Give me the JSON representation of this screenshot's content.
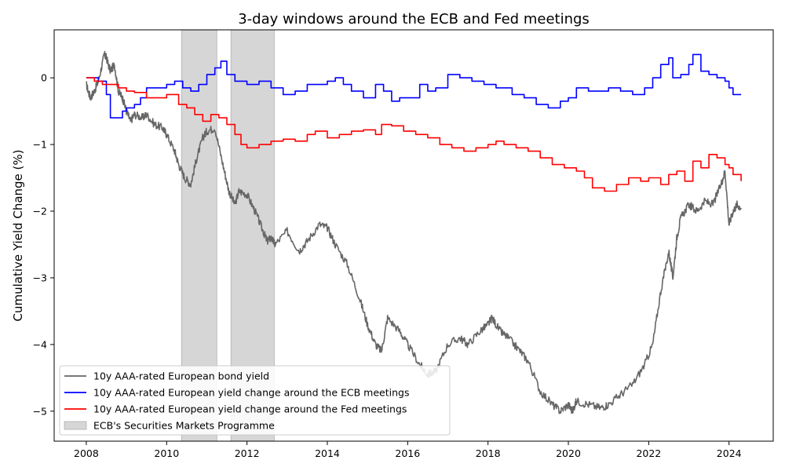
{
  "chart_data": {
    "type": "line",
    "title": "3-day windows around the ECB and Fed meetings",
    "xlabel": "",
    "ylabel": "Cumulative Yield Change (%)",
    "xlim": [
      2007.2,
      2025.1
    ],
    "ylim": [
      -5.45,
      0.72
    ],
    "xticks": [
      2008,
      2010,
      2012,
      2014,
      2016,
      2018,
      2020,
      2022,
      2024
    ],
    "yticks": [
      0,
      -1,
      -2,
      -3,
      -4,
      -5
    ],
    "ytick_labels": [
      "0",
      "−1",
      "−2",
      "−3",
      "−4",
      "−5"
    ],
    "grid": false,
    "legend_position": "lower-left",
    "shaded_regions": [
      {
        "name": "ECB's Securities Markets Programme",
        "ranges": [
          [
            2010.37,
            2011.25
          ],
          [
            2011.6,
            2012.68
          ]
        ],
        "color": "#d6d6d6"
      }
    ],
    "series": [
      {
        "name": "10y AAA-rated European bond yield",
        "color": "#666666",
        "style": "noisy",
        "x": [
          2008.0,
          2008.1,
          2008.2,
          2008.3,
          2008.45,
          2008.5,
          2008.6,
          2008.7,
          2008.8,
          2008.9,
          2009.0,
          2009.1,
          2009.2,
          2009.4,
          2009.5,
          2009.7,
          2009.9,
          2010.0,
          2010.2,
          2010.3,
          2010.45,
          2010.6,
          2010.75,
          2010.9,
          2011.0,
          2011.2,
          2011.4,
          2011.55,
          2011.7,
          2011.8,
          2012.0,
          2012.2,
          2012.4,
          2012.5,
          2012.6,
          2012.7,
          2013.0,
          2013.3,
          2013.5,
          2013.8,
          2014.0,
          2014.2,
          2014.5,
          2014.8,
          2015.0,
          2015.2,
          2015.35,
          2015.5,
          2015.8,
          2016.0,
          2016.3,
          2016.5,
          2016.7,
          2017.0,
          2017.3,
          2017.5,
          2017.8,
          2018.0,
          2018.1,
          2018.3,
          2018.5,
          2018.8,
          2019.0,
          2019.3,
          2019.6,
          2019.8,
          2020.0,
          2020.1,
          2020.2,
          2020.5,
          2020.8,
          2021.0,
          2021.3,
          2021.6,
          2021.9,
          2022.1,
          2022.3,
          2022.5,
          2022.6,
          2022.7,
          2022.8,
          2023.0,
          2023.2,
          2023.4,
          2023.6,
          2023.8,
          2023.9,
          2024.0,
          2024.1,
          2024.2,
          2024.3
        ],
        "values": [
          -0.1,
          -0.3,
          -0.2,
          -0.05,
          0.35,
          0.3,
          0.1,
          0.2,
          -0.2,
          -0.3,
          -0.5,
          -0.65,
          -0.55,
          -0.6,
          -0.55,
          -0.7,
          -0.75,
          -0.85,
          -1.1,
          -1.3,
          -1.5,
          -1.6,
          -1.2,
          -0.9,
          -0.8,
          -0.75,
          -1.3,
          -1.7,
          -1.9,
          -1.7,
          -1.75,
          -2.0,
          -2.3,
          -2.45,
          -2.4,
          -2.5,
          -2.3,
          -2.6,
          -2.45,
          -2.2,
          -2.25,
          -2.5,
          -2.8,
          -3.3,
          -3.7,
          -4.0,
          -4.1,
          -3.6,
          -3.8,
          -4.0,
          -4.3,
          -4.45,
          -4.4,
          -4.0,
          -3.9,
          -4.0,
          -3.8,
          -3.7,
          -3.6,
          -3.8,
          -3.9,
          -4.1,
          -4.25,
          -4.7,
          -4.9,
          -5.0,
          -4.9,
          -5.0,
          -4.85,
          -4.9,
          -4.95,
          -4.9,
          -4.75,
          -4.6,
          -4.3,
          -4.0,
          -3.2,
          -2.6,
          -3.0,
          -2.4,
          -2.1,
          -1.9,
          -2.0,
          -1.85,
          -1.9,
          -1.6,
          -1.4,
          -2.2,
          -2.0,
          -1.9,
          -1.95
        ]
      },
      {
        "name": "10y AAA-rated European yield change around the ECB meetings",
        "color": "#0000ff",
        "style": "step",
        "x": [
          2008.0,
          2008.15,
          2008.3,
          2008.5,
          2008.6,
          2008.75,
          2008.9,
          2009.0,
          2009.2,
          2009.35,
          2009.5,
          2009.8,
          2010.0,
          2010.2,
          2010.4,
          2010.6,
          2010.8,
          2011.0,
          2011.2,
          2011.35,
          2011.5,
          2011.7,
          2011.85,
          2012.0,
          2012.3,
          2012.6,
          2012.9,
          2013.2,
          2013.5,
          2013.8,
          2014.0,
          2014.2,
          2014.4,
          2014.6,
          2014.9,
          2015.2,
          2015.4,
          2015.6,
          2015.8,
          2016.0,
          2016.3,
          2016.5,
          2016.7,
          2017.0,
          2017.3,
          2017.6,
          2017.9,
          2018.2,
          2018.6,
          2018.9,
          2019.2,
          2019.5,
          2019.8,
          2020.0,
          2020.2,
          2020.5,
          2020.8,
          2021.0,
          2021.3,
          2021.6,
          2021.9,
          2022.1,
          2022.3,
          2022.5,
          2022.6,
          2022.8,
          2023.0,
          2023.1,
          2023.3,
          2023.5,
          2023.7,
          2023.9,
          2024.0,
          2024.1,
          2024.3
        ],
        "values": [
          0.0,
          0.0,
          -0.05,
          -0.25,
          -0.6,
          -0.6,
          -0.5,
          -0.45,
          -0.4,
          -0.3,
          -0.15,
          -0.15,
          -0.1,
          -0.05,
          -0.15,
          -0.2,
          -0.1,
          0.05,
          0.15,
          0.25,
          0.05,
          -0.05,
          -0.05,
          -0.1,
          -0.05,
          -0.15,
          -0.25,
          -0.2,
          -0.1,
          -0.1,
          -0.05,
          0.0,
          -0.1,
          -0.2,
          -0.3,
          -0.1,
          -0.2,
          -0.35,
          -0.3,
          -0.3,
          -0.1,
          -0.2,
          -0.15,
          0.05,
          0.0,
          -0.05,
          -0.1,
          -0.15,
          -0.25,
          -0.3,
          -0.4,
          -0.45,
          -0.35,
          -0.3,
          -0.15,
          -0.2,
          -0.2,
          -0.15,
          -0.2,
          -0.25,
          -0.15,
          0.0,
          0.2,
          0.3,
          0.0,
          0.05,
          0.2,
          0.35,
          0.1,
          0.05,
          0.0,
          -0.05,
          -0.15,
          -0.25,
          -0.25
        ]
      },
      {
        "name": "10y AAA-rated European yield change around the Fed meetings",
        "color": "#ff0000",
        "style": "step",
        "x": [
          2008.0,
          2008.2,
          2008.4,
          2008.6,
          2008.8,
          2009.0,
          2009.2,
          2009.5,
          2009.8,
          2010.0,
          2010.3,
          2010.5,
          2010.7,
          2010.9,
          2011.1,
          2011.3,
          2011.5,
          2011.7,
          2011.85,
          2012.0,
          2012.3,
          2012.6,
          2012.9,
          2013.2,
          2013.5,
          2013.7,
          2014.0,
          2014.3,
          2014.6,
          2014.9,
          2015.2,
          2015.35,
          2015.6,
          2015.9,
          2016.2,
          2016.5,
          2016.8,
          2017.1,
          2017.4,
          2017.7,
          2018.0,
          2018.2,
          2018.4,
          2018.7,
          2019.0,
          2019.3,
          2019.6,
          2019.9,
          2020.2,
          2020.4,
          2020.6,
          2020.9,
          2021.2,
          2021.5,
          2021.8,
          2022.0,
          2022.3,
          2022.5,
          2022.7,
          2022.9,
          2023.1,
          2023.3,
          2023.5,
          2023.7,
          2023.9,
          2024.0,
          2024.1,
          2024.3
        ],
        "values": [
          0.0,
          -0.05,
          -0.1,
          -0.1,
          -0.15,
          -0.2,
          -0.22,
          -0.3,
          -0.3,
          -0.25,
          -0.4,
          -0.45,
          -0.55,
          -0.65,
          -0.55,
          -0.6,
          -0.7,
          -0.85,
          -1.0,
          -1.05,
          -1.0,
          -0.95,
          -0.92,
          -0.95,
          -0.85,
          -0.8,
          -0.9,
          -0.85,
          -0.8,
          -0.78,
          -0.85,
          -0.7,
          -0.72,
          -0.8,
          -0.85,
          -0.9,
          -1.0,
          -1.05,
          -1.1,
          -1.05,
          -1.0,
          -0.95,
          -1.0,
          -1.05,
          -1.1,
          -1.2,
          -1.3,
          -1.35,
          -1.4,
          -1.5,
          -1.65,
          -1.7,
          -1.6,
          -1.5,
          -1.55,
          -1.5,
          -1.6,
          -1.45,
          -1.4,
          -1.55,
          -1.25,
          -1.35,
          -1.15,
          -1.2,
          -1.3,
          -1.35,
          -1.45,
          -1.55
        ]
      }
    ]
  }
}
